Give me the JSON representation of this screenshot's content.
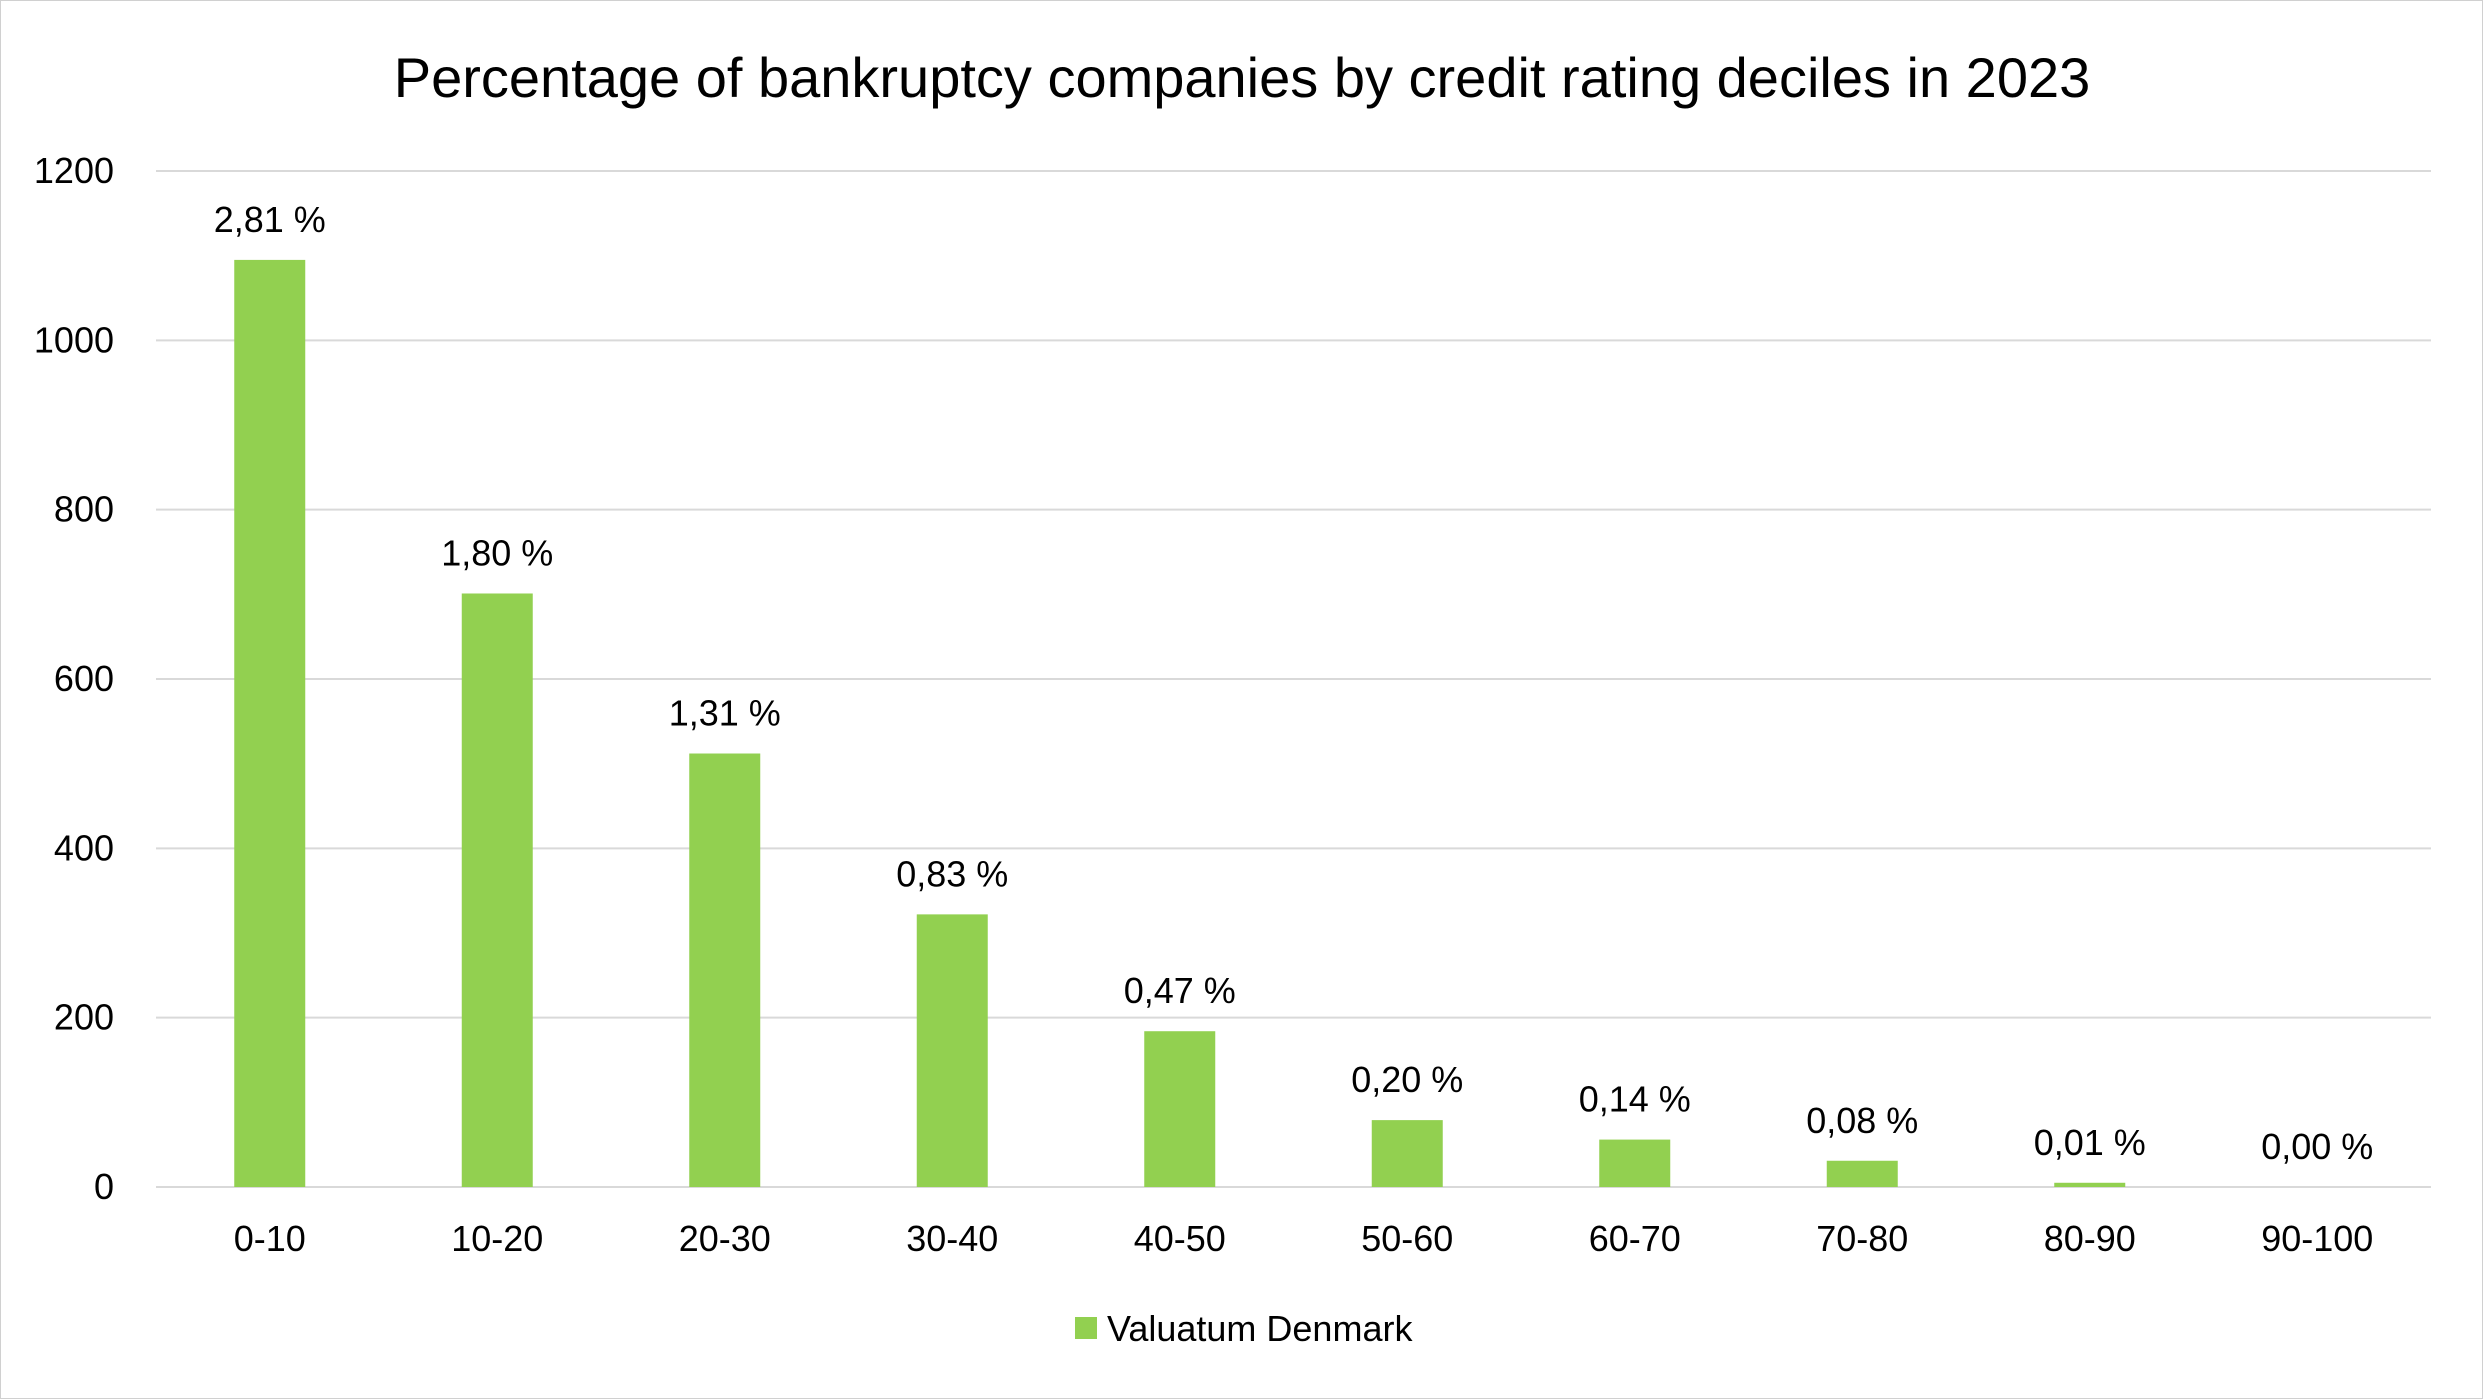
{
  "chart_data": {
    "type": "bar",
    "title": "Percentage of bankruptcy companies by credit rating deciles in 2023",
    "xlabel": "",
    "ylabel": "",
    "categories": [
      "0-10",
      "10-20",
      "20-30",
      "30-40",
      "40-50",
      "50-60",
      "60-70",
      "70-80",
      "80-90",
      "90-100"
    ],
    "series": [
      {
        "name": "Valuatum Denmark",
        "color": "#92d050",
        "values": [
          1095,
          701,
          512,
          322,
          184,
          79,
          56,
          31,
          5,
          0
        ],
        "data_labels": [
          "2,81 %",
          "1,80 %",
          "1,31 %",
          "0,83 %",
          "0,47 %",
          "0,20 %",
          "0,14 %",
          "0,08 %",
          "0,01 %",
          "0,00 %"
        ]
      }
    ],
    "ylim": [
      0,
      1200
    ],
    "yticks": [
      0,
      200,
      400,
      600,
      800,
      1000,
      1200
    ],
    "ytick_labels": [
      "0",
      "200",
      "400",
      "600",
      "800",
      "1000",
      "1200"
    ],
    "grid": true,
    "grid_color": "#d9d9d9",
    "legend_position": "bottom"
  }
}
